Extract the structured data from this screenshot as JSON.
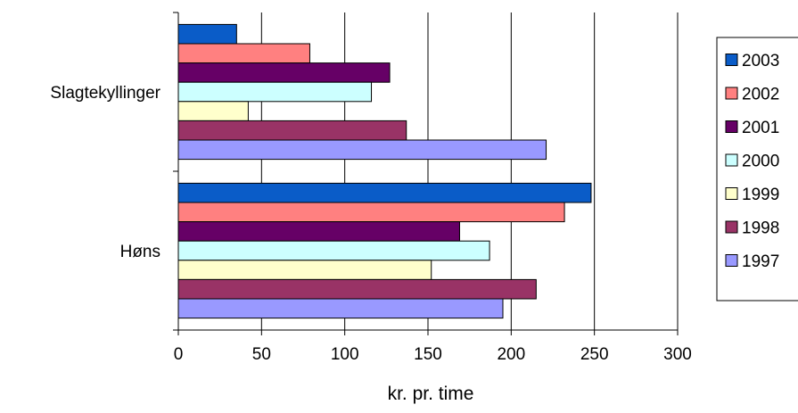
{
  "chart_data": {
    "type": "bar",
    "orientation": "horizontal",
    "title": "",
    "xlabel": "kr. pr. time",
    "ylabel": "",
    "xlim": [
      0,
      300
    ],
    "x_ticks": [
      "0",
      "50",
      "100",
      "150",
      "200",
      "250",
      "300"
    ],
    "categories": [
      "Slagtekyllinger",
      "Høns"
    ],
    "grid": "vertical major gridlines",
    "legend_position": "right",
    "series": [
      {
        "name": "2003",
        "color": "#0A5CC8",
        "values": [
          35,
          248
        ]
      },
      {
        "name": "2002",
        "color": "#FF8080",
        "values": [
          79,
          232
        ]
      },
      {
        "name": "2001",
        "color": "#660066",
        "values": [
          127,
          169
        ]
      },
      {
        "name": "2000",
        "color": "#CCFFFF",
        "values": [
          116,
          187
        ]
      },
      {
        "name": "1999",
        "color": "#FFFFCC",
        "values": [
          42,
          152
        ]
      },
      {
        "name": "1998",
        "color": "#993366",
        "values": [
          137,
          215
        ]
      },
      {
        "name": "1997",
        "color": "#9999FF",
        "values": [
          221,
          195
        ]
      }
    ]
  }
}
